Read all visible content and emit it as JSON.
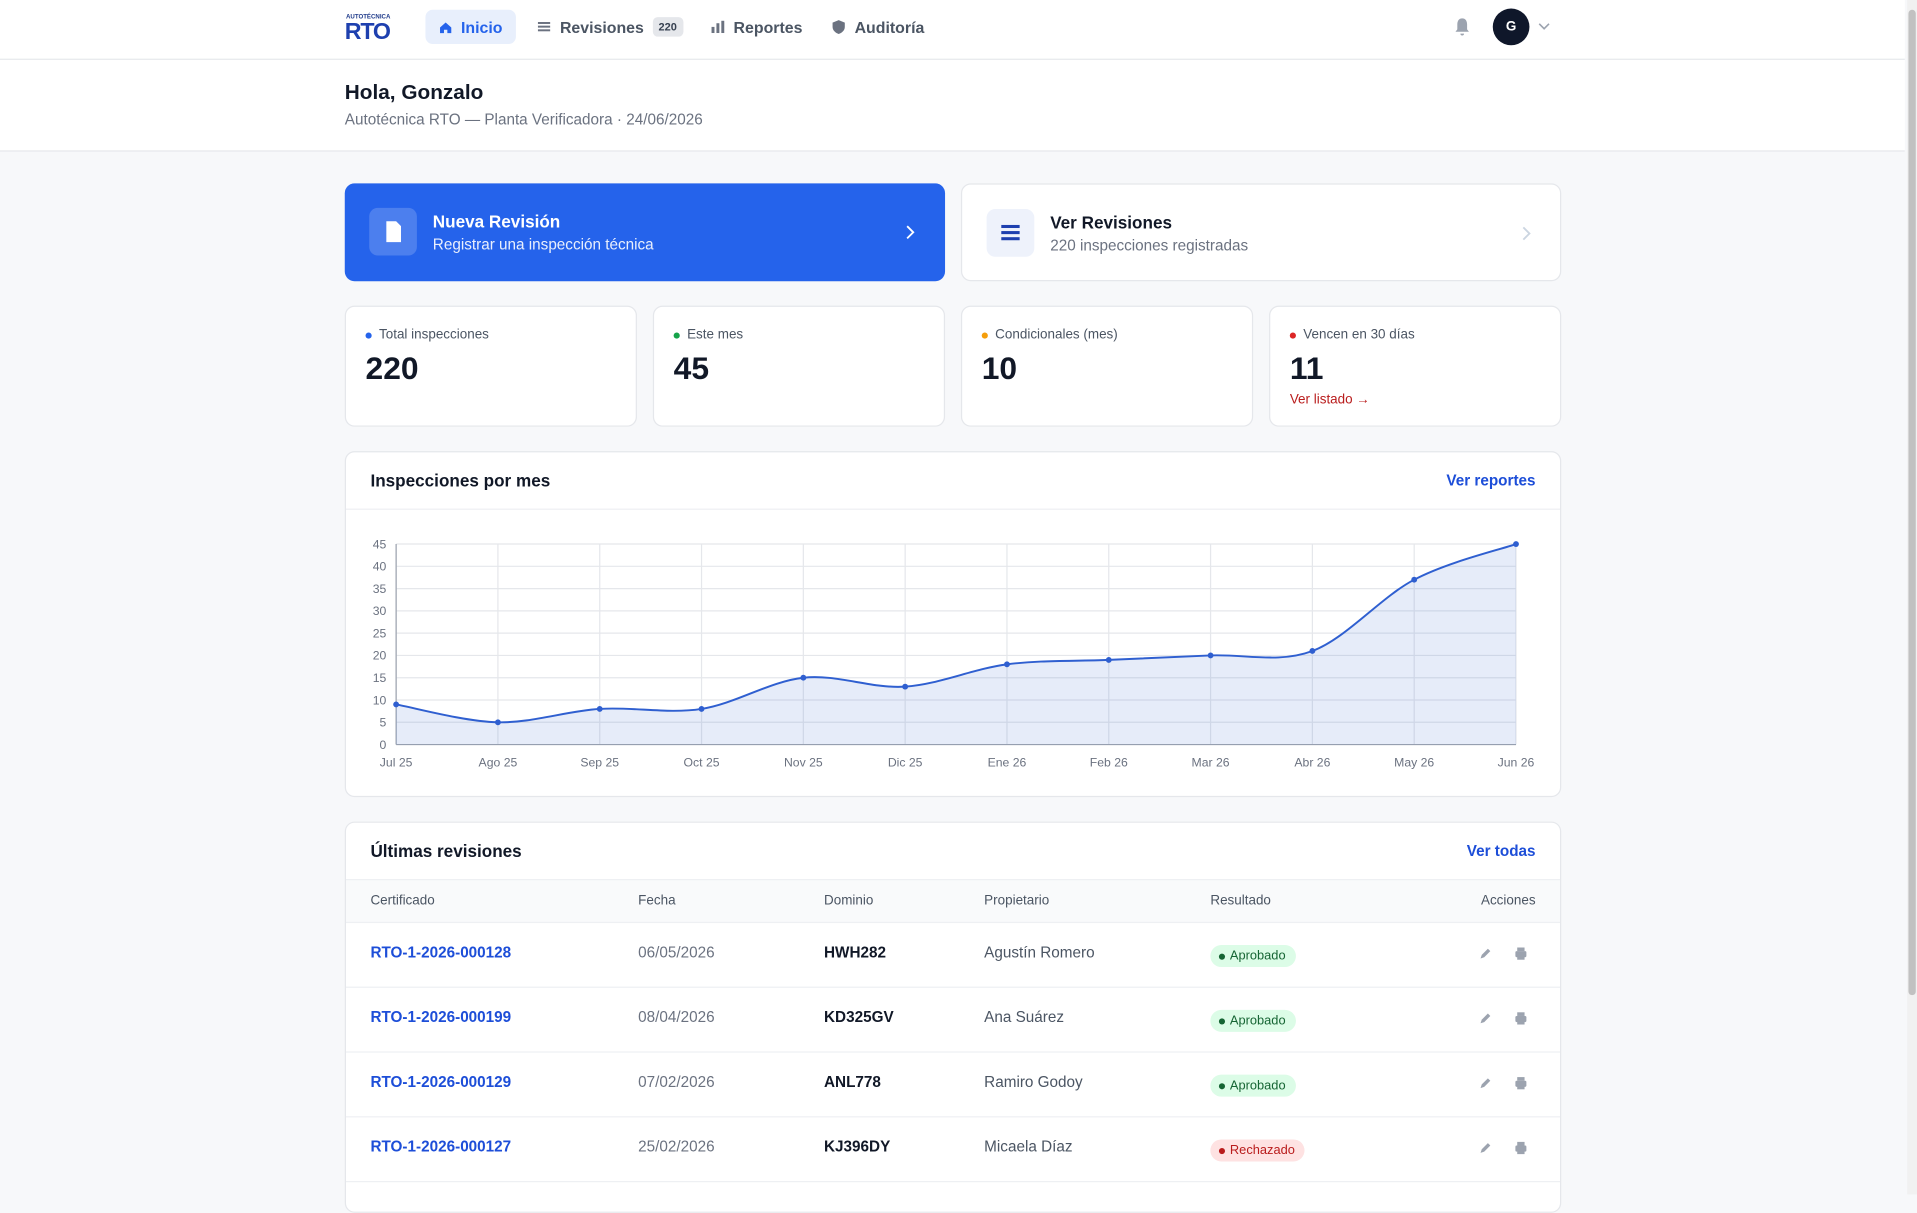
{
  "nav": {
    "logo_small": "AUTOTÉCNICA",
    "logo": "RTO",
    "items": [
      {
        "label": "Inicio"
      },
      {
        "label": "Revisiones",
        "badge": "220"
      },
      {
        "label": "Reportes"
      },
      {
        "label": "Auditoría"
      }
    ],
    "avatar": "G"
  },
  "header": {
    "greeting": "Hola, Gonzalo",
    "subtitle": "Autotécnica RTO — Planta Verificadora · 24/06/2026"
  },
  "actions": [
    {
      "title": "Nueva Revisión",
      "subtitle": "Registrar una inspección técnica"
    },
    {
      "title": "Ver Revisiones",
      "subtitle": "220 inspecciones registradas"
    }
  ],
  "stats": [
    {
      "label": "Total inspecciones",
      "value": 220
    },
    {
      "label": "Este mes",
      "value": 45
    },
    {
      "label": "Condicionales (mes)",
      "value": 10
    },
    {
      "label": "Vencen en 30 días",
      "value": 11,
      "link": "Ver listado →"
    }
  ],
  "chart_data": {
    "type": "area",
    "title": "Inspecciones por mes",
    "link": "Ver reportes",
    "categories": [
      "Jul 25",
      "Ago 25",
      "Sep 25",
      "Oct 25",
      "Nov 25",
      "Dic 25",
      "Ene 26",
      "Feb 26",
      "Mar 26",
      "Abr 26",
      "May 26",
      "Jun 26"
    ],
    "values": [
      9,
      5,
      8,
      8,
      15,
      13,
      18,
      19,
      20,
      21,
      37,
      45
    ],
    "color": "#2f5fd0",
    "ylim": [
      0,
      45
    ],
    "yticks": [
      0,
      5,
      10,
      15,
      20,
      25,
      30,
      35,
      40,
      45
    ],
    "grid": true
  },
  "table": {
    "title": "Últimas revisiones",
    "link": "Ver todas",
    "columns": [
      "Certificado",
      "Fecha",
      "Dominio",
      "Propietario",
      "Resultado",
      "Acciones"
    ],
    "rows": [
      [
        "RTO-1-2026-000128",
        "06/05/2026",
        "HWH282",
        "Agustín Romero",
        "Aprobado"
      ],
      [
        "RTO-1-2026-000199",
        "08/04/2026",
        "KD325GV",
        "Ana Suárez",
        "Aprobado"
      ],
      [
        "RTO-1-2026-000129",
        "07/02/2026",
        "ANL778",
        "Ramiro Godoy",
        "Aprobado"
      ],
      [
        "RTO-1-2026-000127",
        "25/02/2026",
        "KJ396DY",
        "Micaela Díaz",
        "Rechazado"
      ]
    ]
  }
}
